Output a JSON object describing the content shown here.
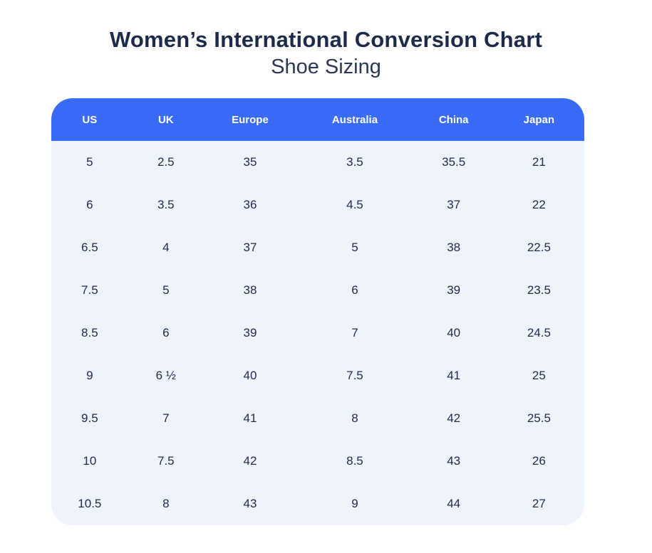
{
  "page": {
    "title": "Women’s International Conversion Chart",
    "subtitle": "Shoe Sizing"
  },
  "colors": {
    "header_bg": "#3A6BF7",
    "header_text": "#FFFFFF",
    "body_bg": "#EEF3FC",
    "cell_text": "#212C47",
    "title_text": "#1E2A4A",
    "page_bg": "#FFFFFF"
  },
  "table": {
    "columns": [
      "US",
      "UK",
      "Europe",
      "Australia",
      "China",
      "Japan"
    ],
    "rows": [
      [
        "5",
        "2.5",
        "35",
        "3.5",
        "35.5",
        "21"
      ],
      [
        "6",
        "3.5",
        "36",
        "4.5",
        "37",
        "22"
      ],
      [
        "6.5",
        "4",
        "37",
        "5",
        "38",
        "22.5"
      ],
      [
        "7.5",
        "5",
        "38",
        "6",
        "39",
        "23.5"
      ],
      [
        "8.5",
        "6",
        "39",
        "7",
        "40",
        "24.5"
      ],
      [
        "9",
        "6 ½",
        "40",
        "7.5",
        "41",
        "25"
      ],
      [
        "9.5",
        "7",
        "41",
        "8",
        "42",
        "25.5"
      ],
      [
        "10",
        "7.5",
        "42",
        "8.5",
        "43",
        "26"
      ],
      [
        "10.5",
        "8",
        "43",
        "9",
        "44",
        "27"
      ]
    ]
  },
  "chart_data": {
    "type": "table",
    "title": "Women’s International Conversion Chart",
    "subtitle": "Shoe Sizing",
    "columns": [
      "US",
      "UK",
      "Europe",
      "Australia",
      "China",
      "Japan"
    ],
    "rows": [
      [
        "5",
        "2.5",
        "35",
        "3.5",
        "35.5",
        "21"
      ],
      [
        "6",
        "3.5",
        "36",
        "4.5",
        "37",
        "22"
      ],
      [
        "6.5",
        "4",
        "37",
        "5",
        "38",
        "22.5"
      ],
      [
        "7.5",
        "5",
        "38",
        "6",
        "39",
        "23.5"
      ],
      [
        "8.5",
        "6",
        "39",
        "7",
        "40",
        "24.5"
      ],
      [
        "9",
        "6 ½",
        "40",
        "7.5",
        "41",
        "25"
      ],
      [
        "9.5",
        "7",
        "41",
        "8",
        "42",
        "25.5"
      ],
      [
        "10",
        "7.5",
        "42",
        "8.5",
        "43",
        "26"
      ],
      [
        "10.5",
        "8",
        "43",
        "9",
        "44",
        "27"
      ]
    ]
  }
}
